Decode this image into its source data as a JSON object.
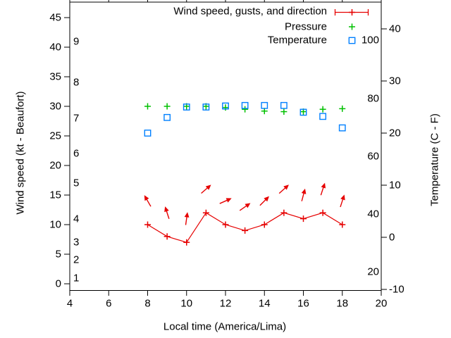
{
  "legend": {
    "entries": [
      {
        "label": "Wind speed, gusts, and direction",
        "series": "wind",
        "sample": "errorbar-plus"
      },
      {
        "label": "Pressure",
        "series": "pressure",
        "sample": "plus"
      },
      {
        "label": "Temperature",
        "series": "temperature",
        "sample": "open-square"
      }
    ]
  },
  "axes": {
    "x": {
      "label": "Local time (America/Lima)",
      "ticks": [
        4,
        6,
        8,
        10,
        12,
        14,
        16,
        18,
        20
      ],
      "range": [
        4,
        20
      ]
    },
    "y_left": {
      "label": "Wind speed (kt - Beaufort)",
      "ticks_kt": [
        0,
        5,
        10,
        15,
        20,
        25,
        30,
        35,
        40,
        45
      ],
      "beaufort_ticks": [
        {
          "bft": "1",
          "kt": 1
        },
        {
          "bft": "2",
          "kt": 4
        },
        {
          "bft": "3",
          "kt": 7
        },
        {
          "bft": "4",
          "kt": 11
        },
        {
          "bft": "5",
          "kt": 17
        },
        {
          "bft": "6",
          "kt": 22
        },
        {
          "bft": "7",
          "kt": 28
        },
        {
          "bft": "8",
          "kt": 34
        },
        {
          "bft": "9",
          "kt": 41
        }
      ]
    },
    "y_right": {
      "label": "Temperature (C - F)",
      "celsius_ticks": [
        -10,
        0,
        10,
        20,
        30,
        40
      ],
      "fahrenheit_ticks": [
        20,
        40,
        60,
        80,
        100
      ]
    }
  },
  "colors": {
    "wind": "#e60000",
    "pressure": "#00c000",
    "temperature": "#0080ff",
    "axis": "#000000",
    "text": "#000000"
  },
  "chart_data": {
    "type": "line",
    "title": "",
    "xlabel": "Local time (America/Lima)",
    "ylabel": "Wind speed (kt - Beaufort)",
    "y2label": "Temperature (C - F)",
    "xlim": [
      4,
      20
    ],
    "ylim_kt": [
      -1.1,
      47.6
    ],
    "y2lim_c": [
      -10.2,
      45.1
    ],
    "grid": false,
    "legend_position": "top-right-inside",
    "x_hours": [
      8,
      9,
      10,
      11,
      12,
      13,
      14,
      15,
      16,
      17,
      18
    ],
    "series": [
      {
        "name": "Wind speed",
        "unit": "kt",
        "marker": "plus-line",
        "color_key": "wind",
        "values": [
          10,
          8,
          7,
          12,
          10,
          9,
          10,
          12,
          11,
          12,
          10
        ]
      },
      {
        "name": "Wind gusts (arrow center)",
        "unit": "kt",
        "marker": "arrow",
        "color_key": "wind",
        "values": [
          14,
          12,
          11,
          16,
          14,
          13,
          14,
          16,
          15,
          16,
          14
        ]
      },
      {
        "name": "Wind direction (arrow rotation, 0 = up, clockwise)",
        "unit": "deg",
        "marker": "arrow",
        "color_key": "wind",
        "values": [
          -30,
          -18,
          8,
          49,
          66,
          55,
          45,
          48,
          15,
          18,
          18
        ]
      },
      {
        "name": "Pressure (plotted on kt axis)",
        "unit": "kt-axis units",
        "marker": "plus",
        "color_key": "pressure",
        "values": [
          30,
          30,
          30,
          30,
          29.8,
          29.5,
          29.2,
          29.1,
          29.1,
          29.5,
          29.6
        ]
      },
      {
        "name": "Temperature",
        "unit": "C",
        "marker": "open-square",
        "color_key": "temperature",
        "values": [
          20,
          23,
          25,
          25,
          25.2,
          25.3,
          25.3,
          25.3,
          24,
          23.2,
          21
        ]
      }
    ]
  }
}
